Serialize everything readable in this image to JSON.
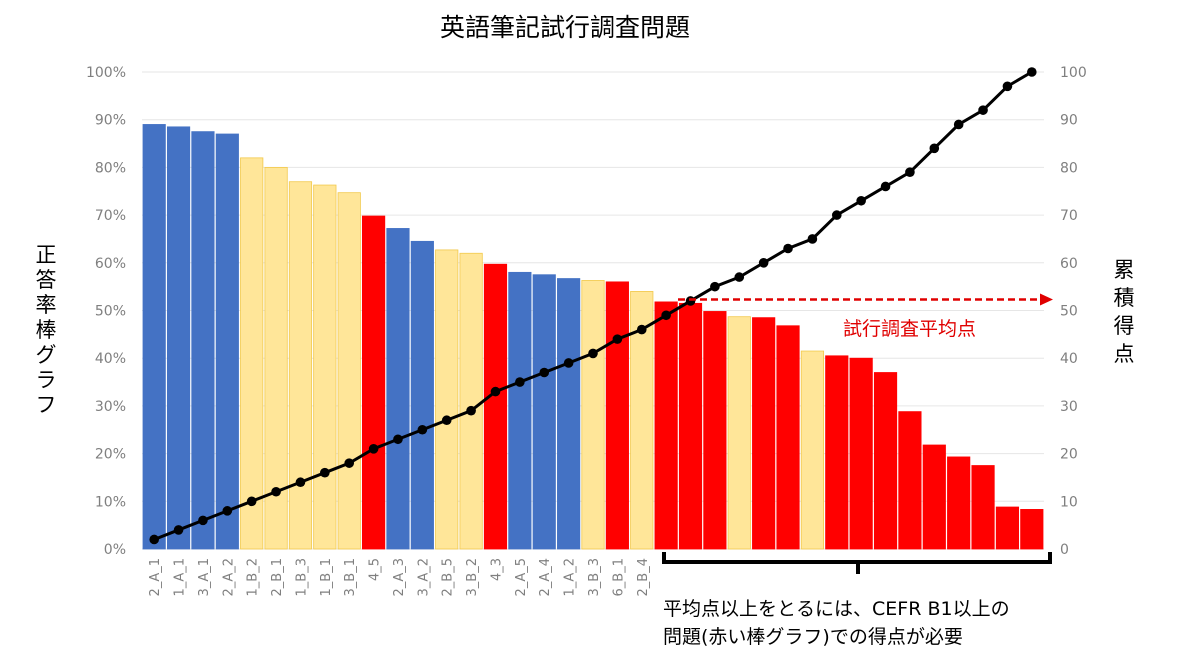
{
  "chart_data": {
    "type": "bar",
    "title": "英語筆記試行調査問題",
    "ylabel_left": "正答率棒グラフ",
    "ylabel_right": "累積得点",
    "left_ticks": [
      "0%",
      "10%",
      "20%",
      "30%",
      "40%",
      "50%",
      "60%",
      "70%",
      "80%",
      "90%",
      "100%"
    ],
    "right_ticks": [
      "0",
      "10",
      "20",
      "30",
      "40",
      "50",
      "60",
      "70",
      "80",
      "90",
      "100"
    ],
    "ylim_left": [
      0,
      100
    ],
    "ylim_right": [
      0,
      100
    ],
    "grid": true,
    "categories": [
      "2_A_1",
      "1_A_1",
      "3_A_1",
      "2_A_2",
      "1_B_2",
      "2_B_1",
      "1_B_3",
      "1_B_1",
      "3_B_1",
      "4_5",
      "2_A_3",
      "3_A_2",
      "2_B_5",
      "3_B_2",
      "4_3",
      "2_A_5",
      "2_A_4",
      "1_A_2",
      "3_B_3",
      "6_B_1",
      "2_B_4",
      "",
      "",
      "",
      "",
      "",
      "",
      "",
      "",
      "",
      "",
      "",
      "",
      "",
      "",
      "",
      ""
    ],
    "series": [
      {
        "type": "bar",
        "values": [
          89,
          88.5,
          87.5,
          87,
          82,
          80,
          77,
          76.3,
          74.7,
          69.8,
          67.2,
          64.5,
          62.7,
          62,
          59.7,
          58,
          57.5,
          56.7,
          56.3,
          56,
          54,
          51.8,
          51.5,
          49.8,
          48.7,
          48.5,
          46.8,
          41.5,
          40.5,
          40,
          37,
          28.8,
          21.8,
          19.3,
          17.5,
          8.8,
          8.3
        ],
        "colors": [
          "#4472c4",
          "#4472c4",
          "#4472c4",
          "#4472c4",
          "#ffe699",
          "#ffe699",
          "#ffe699",
          "#ffe699",
          "#ffe699",
          "#ff0000",
          "#4472c4",
          "#4472c4",
          "#ffe699",
          "#ffe699",
          "#ff0000",
          "#4472c4",
          "#4472c4",
          "#4472c4",
          "#ffe699",
          "#ff0000",
          "#ffe699",
          "#ff0000",
          "#ff0000",
          "#ff0000",
          "#ffe699",
          "#ff0000",
          "#ff0000",
          "#ffe699",
          "#ff0000",
          "#ff0000",
          "#ff0000",
          "#ff0000",
          "#ff0000",
          "#ff0000",
          "#ff0000",
          "#ff0000",
          "#ff0000"
        ]
      },
      {
        "type": "line",
        "axis": "right",
        "color": "#000000",
        "values": [
          2,
          4,
          6,
          8,
          10,
          12,
          14,
          16,
          18,
          21,
          23,
          25,
          27,
          29,
          33,
          35,
          37,
          39,
          41,
          44,
          46,
          49,
          52,
          55,
          57,
          60,
          63,
          65,
          70,
          73,
          76,
          79,
          84,
          89,
          92,
          97,
          100
        ]
      }
    ],
    "annotations": {
      "average_label": "試行調査平均点",
      "average_value": 52,
      "average_color": "#e00000",
      "note_line1": "平均点以上をとるには、CEFR B1以上の",
      "note_line2": "問題(赤い棒グラフ)での得点が必要"
    }
  }
}
